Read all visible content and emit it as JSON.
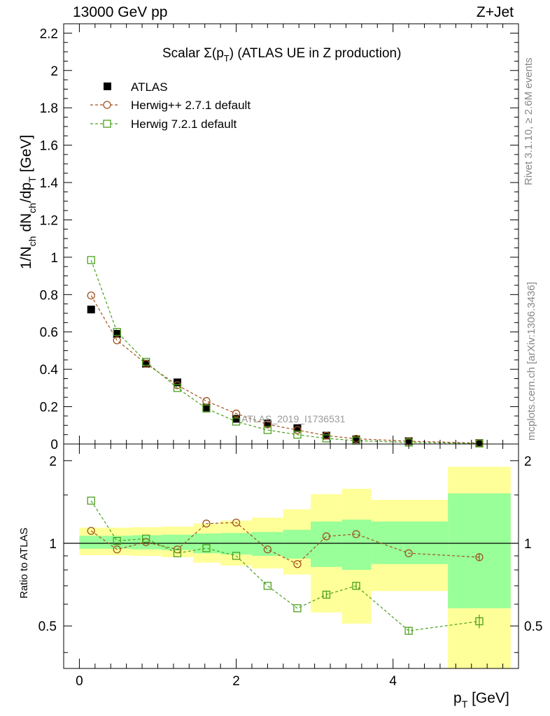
{
  "header": {
    "left": "13000 GeV pp",
    "right": "Z+Jet"
  },
  "side_notes": {
    "rivet": "Rivet 3.1.10, ≥ 2.6M events",
    "mcplots": "mcplots.cern.ch [arXiv:1306.3436]"
  },
  "watermark": "ATLAS_2019_I1736531",
  "colors": {
    "data": "#000000",
    "herwigpp": "#a0521d",
    "herwig7": "#4aa01d",
    "band_inner": "#99ff99",
    "band_outer": "#ffff99"
  },
  "chart_data": [
    {
      "type": "scatter",
      "panel": "main",
      "title": "Scalar Σ(p_T) (ATLAS UE in Z production)",
      "title_parts": {
        "pre": "Scalar Σ(p",
        "sub": "T",
        "post": ") (ATLAS UE in Z production)"
      },
      "ylabel": "1/N_ch dN_ch/dp_T [GeV]",
      "ylabel_parts": {
        "a": "1/N",
        "a_sub": "ch",
        "b": " dN",
        "b_sub": "ch",
        "c": "/dp",
        "c_sub": "T",
        "d": " [GeV]"
      },
      "xlim": [
        -0.2,
        5.6
      ],
      "ylim": [
        0,
        2.25
      ],
      "yticks": [
        0,
        0.2,
        0.4,
        0.6,
        0.8,
        1,
        1.2,
        1.4,
        1.6,
        1.8,
        2,
        2.2
      ],
      "ytick_labels": [
        "0",
        "0.2",
        "0.4",
        "0.6",
        "0.8",
        "1",
        "1.2",
        "1.4",
        "1.6",
        "1.8",
        "2",
        "2.2"
      ],
      "legend_position": "top-left",
      "series": [
        {
          "name": "ATLAS",
          "marker": "filled-square",
          "x": [
            0.15,
            0.48,
            0.85,
            1.25,
            1.62,
            2.0,
            2.4,
            2.78,
            3.15,
            3.53,
            4.2,
            5.1
          ],
          "y": [
            0.72,
            0.59,
            0.43,
            0.33,
            0.195,
            0.135,
            0.11,
            0.085,
            0.045,
            0.025,
            0.015,
            0.005
          ]
        },
        {
          "name": "Herwig++ 2.7.1 default",
          "marker": "open-circle",
          "x": [
            0.15,
            0.48,
            0.85,
            1.25,
            1.62,
            2.0,
            2.4,
            2.78,
            3.15,
            3.53,
            4.2,
            5.1
          ],
          "y": [
            0.795,
            0.555,
            0.43,
            0.315,
            0.23,
            0.163,
            0.105,
            0.075,
            0.045,
            0.028,
            0.015,
            0.005
          ]
        },
        {
          "name": "Herwig 7.2.1 default",
          "marker": "open-square",
          "x": [
            0.15,
            0.48,
            0.85,
            1.25,
            1.62,
            2.0,
            2.4,
            2.78,
            3.15,
            3.53,
            4.2,
            5.1
          ],
          "y": [
            0.985,
            0.6,
            0.44,
            0.3,
            0.19,
            0.12,
            0.075,
            0.05,
            0.03,
            0.018,
            0.008,
            0.003
          ]
        }
      ]
    },
    {
      "type": "scatter",
      "panel": "ratio",
      "ylabel": "Ratio to ATLAS",
      "xlabel": "p_T [GeV]",
      "xlabel_parts": {
        "a": "p",
        "a_sub": "T",
        "b": " [GeV]"
      },
      "xlim": [
        -0.2,
        5.6
      ],
      "ylim": [
        0.35,
        2.3
      ],
      "yscale": "log",
      "xticks": [
        0,
        2,
        4
      ],
      "xtick_labels": [
        "0",
        "2",
        "4"
      ],
      "yticks": [
        0.5,
        1,
        2
      ],
      "ytick_labels": [
        "0.5",
        "1",
        "2"
      ],
      "reference_line": 1,
      "bands": [
        {
          "xlo": 0.0,
          "xhi": 0.32,
          "inner": [
            0.955,
            1.065
          ],
          "outer": [
            0.905,
            1.14
          ]
        },
        {
          "xlo": 0.32,
          "xhi": 0.67,
          "inner": [
            0.955,
            1.065
          ],
          "outer": [
            0.905,
            1.14
          ]
        },
        {
          "xlo": 0.67,
          "xhi": 1.05,
          "inner": [
            0.95,
            1.07
          ],
          "outer": [
            0.9,
            1.145
          ]
        },
        {
          "xlo": 1.05,
          "xhi": 1.45,
          "inner": [
            0.945,
            1.075
          ],
          "outer": [
            0.89,
            1.15
          ]
        },
        {
          "xlo": 1.45,
          "xhi": 1.8,
          "inner": [
            0.92,
            1.085
          ],
          "outer": [
            0.85,
            1.18
          ]
        },
        {
          "xlo": 1.8,
          "xhi": 2.2,
          "inner": [
            0.91,
            1.09
          ],
          "outer": [
            0.83,
            1.21
          ]
        },
        {
          "xlo": 2.2,
          "xhi": 2.6,
          "inner": [
            0.9,
            1.1
          ],
          "outer": [
            0.81,
            1.24
          ]
        },
        {
          "xlo": 2.6,
          "xhi": 2.95,
          "inner": [
            0.88,
            1.12
          ],
          "outer": [
            0.77,
            1.33
          ]
        },
        {
          "xlo": 2.95,
          "xhi": 3.35,
          "inner": [
            0.82,
            1.2
          ],
          "outer": [
            0.56,
            1.51
          ]
        },
        {
          "xlo": 3.35,
          "xhi": 3.72,
          "inner": [
            0.8,
            1.22
          ],
          "outer": [
            0.51,
            1.58
          ]
        },
        {
          "xlo": 3.72,
          "xhi": 4.7,
          "inner": [
            0.84,
            1.2
          ],
          "outer": [
            0.67,
            1.44
          ]
        },
        {
          "xlo": 4.7,
          "xhi": 5.5,
          "inner": [
            0.58,
            1.52
          ],
          "outer": [
            0.35,
            1.9
          ]
        }
      ],
      "series": [
        {
          "name": "Herwig++ 2.7.1 default",
          "marker": "open-circle",
          "x": [
            0.15,
            0.48,
            0.85,
            1.25,
            1.62,
            2.0,
            2.4,
            2.78,
            3.15,
            3.53,
            4.2,
            5.1
          ],
          "y": [
            1.11,
            0.95,
            1.01,
            0.95,
            1.18,
            1.19,
            0.95,
            0.84,
            1.06,
            1.08,
            0.92,
            0.89
          ],
          "yerr": [
            0,
            0,
            0,
            0,
            0,
            0,
            0,
            0,
            0,
            0,
            0,
            0.03
          ]
        },
        {
          "name": "Herwig 7.2.1 default",
          "marker": "open-square",
          "x": [
            0.15,
            0.48,
            0.85,
            1.25,
            1.62,
            2.0,
            2.4,
            2.78,
            3.15,
            3.53,
            4.2,
            5.1
          ],
          "y": [
            1.43,
            1.02,
            1.04,
            0.92,
            0.96,
            0.9,
            0.7,
            0.58,
            0.65,
            0.7,
            0.48,
            0.52
          ],
          "yerr": [
            0,
            0,
            0,
            0,
            0,
            0,
            0,
            0,
            0.02,
            0.02,
            0.015,
            0.03
          ]
        }
      ]
    }
  ]
}
